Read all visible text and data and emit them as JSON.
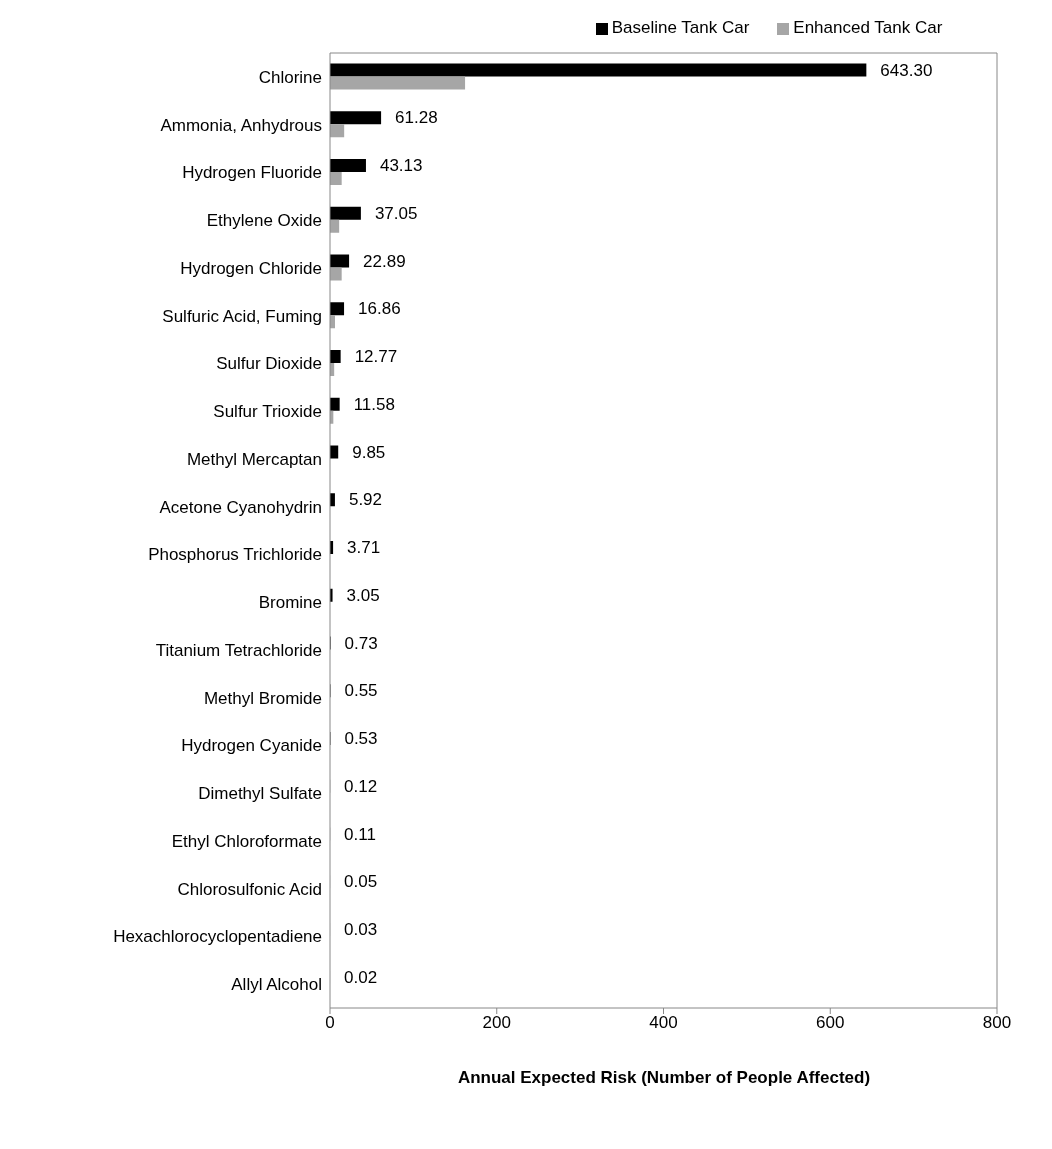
{
  "chart_data": {
    "type": "bar",
    "orientation": "horizontal",
    "xlabel": "Annual Expected Risk (Number of People Affected)",
    "categories": [
      "Chlorine",
      "Ammonia, Anhydrous",
      "Hydrogen Fluoride",
      "Ethylene Oxide",
      "Hydrogen Chloride",
      "Sulfuric Acid, Fuming",
      "Sulfur Dioxide",
      "Sulfur Trioxide",
      "Methyl Mercaptan",
      "Acetone Cyanohydrin",
      "Phosphorus Trichloride",
      "Bromine",
      "Titanium Tetrachloride",
      "Methyl Bromide",
      "Hydrogen Cyanide",
      "Dimethyl Sulfate",
      "Ethyl Chloroformate",
      "Chlorosulfonic Acid",
      "Hexachlorocyclopentadiene",
      "Allyl Alcohol"
    ],
    "series": [
      {
        "name": "Baseline Tank Car",
        "color": "#000000",
        "values": [
          643.3,
          61.28,
          43.13,
          37.05,
          22.89,
          16.86,
          12.77,
          11.58,
          9.85,
          5.92,
          3.71,
          3.05,
          0.73,
          0.55,
          0.53,
          0.12,
          0.11,
          0.05,
          0.03,
          0.02
        ],
        "value_labels": [
          "643.30",
          "61.28",
          "43.13",
          "37.05",
          "22.89",
          "16.86",
          "12.77",
          "11.58",
          "9.85",
          "5.92",
          "3.71",
          "3.05",
          "0.73",
          "0.55",
          "0.53",
          "0.12",
          "0.11",
          "0.05",
          "0.03",
          "0.02"
        ]
      },
      {
        "name": "Enhanced Tank Car",
        "color": "#a6a6a6",
        "values": [
          162,
          17,
          14,
          11,
          14,
          6,
          5,
          4,
          null,
          null,
          null,
          null,
          0,
          0,
          0,
          0,
          0,
          0,
          0,
          0
        ]
      }
    ],
    "xlim": [
      0,
      800
    ],
    "xticks": [
      0,
      200,
      400,
      600,
      800
    ],
    "legend": "top"
  }
}
